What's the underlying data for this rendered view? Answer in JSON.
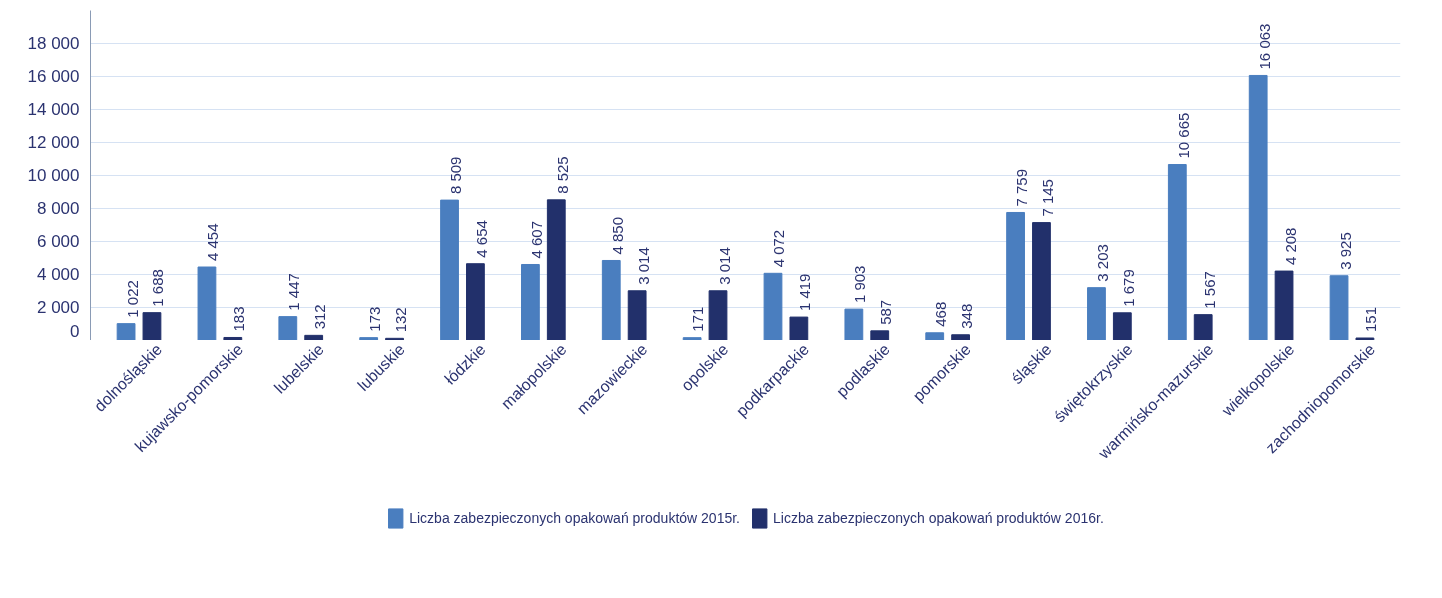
{
  "chart_data": {
    "type": "bar",
    "categories": [
      "dolnośląskie",
      "kujawsko-pomorskie",
      "lubelskie",
      "lubuskie",
      "łódzkie",
      "małopolskie",
      "mazowieckie",
      "opolskie",
      "podkarpackie",
      "podlaskie",
      "pomorskie",
      "śląskie",
      "świętokrzyskie",
      "warmińsko-mazurskie",
      "wielkopolskie",
      "zachodniopomorskie"
    ],
    "series": [
      {
        "name": "Liczba zabezpieczonych opakowań produktów 2015r.",
        "color": "#4a7ebf",
        "values": [
          1022,
          4454,
          1447,
          173,
          8509,
          4607,
          4850,
          171,
          4072,
          1903,
          468,
          7759,
          3203,
          10665,
          16063,
          3925
        ]
      },
      {
        "name": "Liczba zabezpieczonych opakowań produktów 2016r.",
        "color": "#22306b",
        "values": [
          1688,
          183,
          312,
          132,
          4654,
          8525,
          3014,
          3014,
          1419,
          587,
          348,
          7145,
          1679,
          1567,
          4208,
          151
        ]
      }
    ],
    "ylim": [
      0,
      20000
    ],
    "yticks": [
      {
        "value": 0,
        "label": "0"
      },
      {
        "value": 2000,
        "label": "2 000"
      },
      {
        "value": 4000,
        "label": "4 000"
      },
      {
        "value": 6000,
        "label": "6 000"
      },
      {
        "value": 8000,
        "label": "8 000"
      },
      {
        "value": 10000,
        "label": "10 000"
      },
      {
        "value": 12000,
        "label": "12 000"
      },
      {
        "value": 14000,
        "label": "14 000"
      },
      {
        "value": 16000,
        "label": "16 000"
      },
      {
        "value": 18000,
        "label": "18 000"
      }
    ],
    "grid": "y",
    "legend": "bottom",
    "data_labels": true
  }
}
